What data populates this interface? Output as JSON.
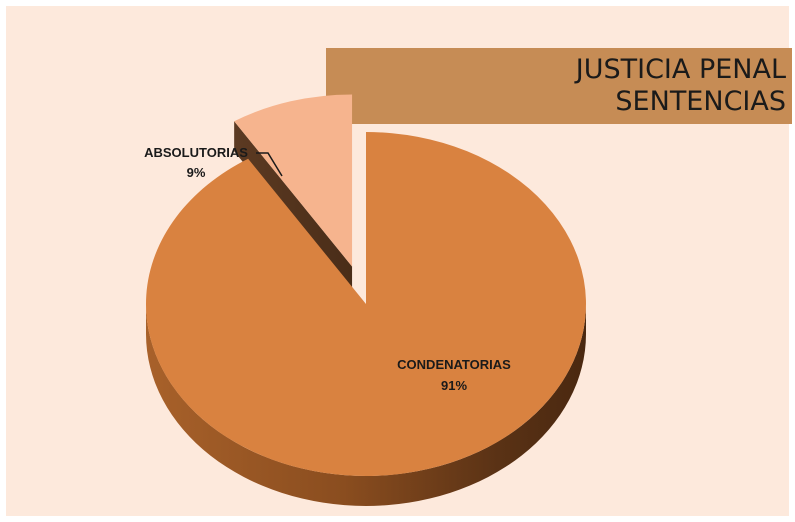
{
  "chart_data": {
    "type": "pie",
    "title": "JUSTICIA PENAL",
    "subtitle": "SENTENCIAS",
    "legend": "none",
    "slices": [
      {
        "label": "CONDENATORIAS",
        "value": 91,
        "value_label": "91%",
        "color": "#d98240"
      },
      {
        "label": "ABSOLUTORIAS",
        "value": 9,
        "value_label": "9%",
        "color": "#f6b48e"
      }
    ]
  },
  "colors": {
    "background": "#fde9dc",
    "title_box": "#c68c55"
  }
}
